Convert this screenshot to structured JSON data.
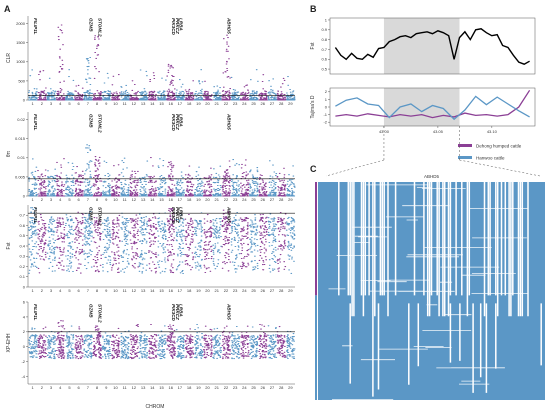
{
  "panel_labels": {
    "a": "A",
    "b": "B",
    "c": "C"
  },
  "colors": {
    "blue": "#5b97c6",
    "purple": "#8b3f95",
    "threshold": "#111111",
    "shade": "#d9d9d9",
    "line_black": "#000000"
  },
  "chart_data": [
    {
      "type": "scatter",
      "ylabel": "CLR",
      "yticks": [
        0,
        500,
        1000,
        1500,
        2000
      ],
      "ylim": [
        0,
        2200
      ],
      "baseline": 150,
      "threshold": 120,
      "genes": [
        {
          "label": "FILIP1L",
          "chrom": 1
        },
        {
          "label": "GZMB",
          "chrom": 7
        },
        {
          "label": "STOML2",
          "chrom": 8
        },
        {
          "label": "PIK3CD",
          "chrom": 16
        },
        {
          "label": "PRKCZ",
          "chrom": 16.4
        },
        {
          "label": "LRBA",
          "chrom": 16.8
        },
        {
          "label": "ABHD5",
          "chrom": 22
        }
      ],
      "peaks": [
        {
          "chrom": 4,
          "value": 2050
        },
        {
          "chrom": 7,
          "value": 1200
        },
        {
          "chrom": 8,
          "value": 1700
        },
        {
          "chrom": 16,
          "value": 1000
        },
        {
          "chrom": 22,
          "value": 1800
        }
      ]
    },
    {
      "type": "scatter",
      "ylabel": "θπ",
      "yticks": [
        0,
        0.005,
        0.01,
        0.015,
        0.02
      ],
      "ylim": [
        0,
        0.022
      ],
      "baseline": 0.0035,
      "threshold": 0.0045,
      "genes": [
        {
          "label": "FILIP1L",
          "chrom": 1
        },
        {
          "label": "GZMB",
          "chrom": 7
        },
        {
          "label": "STOML2",
          "chrom": 8
        },
        {
          "label": "PIK3CD",
          "chrom": 16
        },
        {
          "label": "PRKCZ",
          "chrom": 16.4
        },
        {
          "label": "LRBA",
          "chrom": 16.8
        },
        {
          "label": "ABHD5",
          "chrom": 22
        }
      ],
      "peaks": [
        {
          "chrom": 7,
          "value": 0.0135
        },
        {
          "chrom": 8,
          "value": 0.011
        },
        {
          "chrom": 16,
          "value": 0.009
        },
        {
          "chrom": 22,
          "value": 0.007
        }
      ]
    },
    {
      "type": "scatter",
      "ylabel": "Fst",
      "yticks": [
        0,
        0.1,
        0.2,
        0.3,
        0.4,
        0.5,
        0.6,
        0.7
      ],
      "ylim": [
        0,
        0.8
      ],
      "baseline": 0.48,
      "threshold": 0.72,
      "genes": [
        {
          "label": "FILIP1L",
          "chrom": 1
        },
        {
          "label": "GZMB",
          "chrom": 7
        },
        {
          "label": "STOML2",
          "chrom": 8
        },
        {
          "label": "PIK3CD",
          "chrom": 16
        },
        {
          "label": "PRKCZ",
          "chrom": 16.4
        },
        {
          "label": "LRBA",
          "chrom": 16.8
        },
        {
          "label": "ABHD5",
          "chrom": 22
        }
      ],
      "peaks": [
        {
          "chrom": 1,
          "value": 0.78
        },
        {
          "chrom": 7,
          "value": 0.74
        },
        {
          "chrom": 16,
          "value": 0.78
        },
        {
          "chrom": 22,
          "value": 0.76
        }
      ]
    },
    {
      "type": "scatter",
      "ylabel": "XP-EHH",
      "yticks": [
        -4,
        -2,
        0,
        2,
        4,
        6
      ],
      "ylim": [
        -5,
        6
      ],
      "baseline": 0,
      "threshold": 2.0,
      "genes": [
        {
          "label": "FILIP1L",
          "chrom": 1
        },
        {
          "label": "GZMB",
          "chrom": 7
        },
        {
          "label": "STOML2",
          "chrom": 8
        },
        {
          "label": "PIK3CD",
          "chrom": 16
        },
        {
          "label": "PRKCZ",
          "chrom": 16.4
        },
        {
          "label": "LRBA",
          "chrom": 16.8
        },
        {
          "label": "ABHD5",
          "chrom": 22
        }
      ],
      "peaks": [
        {
          "chrom": 4,
          "value": 3.5
        },
        {
          "chrom": 8,
          "value": 3.0
        },
        {
          "chrom": 16,
          "value": 3.2
        }
      ]
    },
    {
      "type": "line",
      "ylabel": "Fst",
      "yticks": [
        0.5,
        0.6,
        0.7,
        0.8,
        0.9,
        1.0
      ],
      "ylim": [
        0.45,
        1.02
      ],
      "xlim": [
        42.95,
        43.14
      ],
      "shade": [
        43.0,
        43.07
      ],
      "x": [
        42.955,
        42.96,
        42.965,
        42.97,
        42.975,
        42.98,
        42.985,
        42.99,
        42.995,
        43.0,
        43.005,
        43.01,
        43.015,
        43.02,
        43.025,
        43.03,
        43.035,
        43.04,
        43.045,
        43.05,
        43.055,
        43.06,
        43.065,
        43.07,
        43.075,
        43.08,
        43.085,
        43.09,
        43.095,
        43.1,
        43.105,
        43.11,
        43.115,
        43.12,
        43.125,
        43.13,
        43.135
      ],
      "y": [
        0.72,
        0.64,
        0.6,
        0.66,
        0.61,
        0.6,
        0.65,
        0.62,
        0.71,
        0.72,
        0.78,
        0.8,
        0.83,
        0.84,
        0.82,
        0.86,
        0.87,
        0.88,
        0.86,
        0.89,
        0.87,
        0.84,
        0.6,
        0.82,
        0.88,
        0.8,
        0.9,
        0.91,
        0.87,
        0.84,
        0.85,
        0.74,
        0.72,
        0.64,
        0.57,
        0.55,
        0.58
      ]
    },
    {
      "type": "line",
      "ylabel": "Tajima's D",
      "yticks": [
        -2,
        -1,
        0,
        1,
        2
      ],
      "ylim": [
        -2.5,
        2.5
      ],
      "xlim": [
        42.95,
        43.14
      ],
      "shade": [
        43.0,
        43.07
      ],
      "xticks": [
        43.0,
        43.05,
        43.1
      ],
      "series": [
        {
          "name": "Dehong humped cattle",
          "x": [
            42.955,
            42.965,
            42.975,
            42.985,
            42.995,
            43.005,
            43.015,
            43.025,
            43.035,
            43.045,
            43.055,
            43.065,
            43.075,
            43.085,
            43.095,
            43.105,
            43.115,
            43.125,
            43.135
          ],
          "y": [
            -1.2,
            -1.0,
            -1.2,
            -0.9,
            -1.1,
            -1.3,
            -1.0,
            -1.2,
            -1.0,
            -1.4,
            -1.1,
            -1.3,
            -0.8,
            -1.1,
            -1.0,
            -1.2,
            -1.0,
            0.0,
            2.2
          ]
        },
        {
          "name": "Hanwoo cattle",
          "x": [
            42.955,
            42.965,
            42.975,
            42.985,
            42.995,
            43.005,
            43.015,
            43.025,
            43.035,
            43.045,
            43.055,
            43.065,
            43.075,
            43.085,
            43.095,
            43.105,
            43.115,
            43.125,
            43.135
          ],
          "y": [
            0.1,
            0.9,
            1.2,
            0.4,
            0.2,
            -1.4,
            0.0,
            0.4,
            -0.6,
            0.2,
            -0.2,
            -1.6,
            -0.4,
            1.4,
            0.3,
            1.3,
            0.4,
            -0.5,
            -1.3
          ]
        }
      ]
    },
    {
      "type": "heatmap",
      "title": "ABHD5",
      "colors": [
        "#5b97c6",
        "#ffffff"
      ],
      "row_groups": [
        {
          "name": "Dehong humped cattle",
          "color": "#8b3f95"
        },
        {
          "name": "Hanwoo cattle",
          "color": "#5b97c6"
        }
      ]
    }
  ],
  "chromosomes": [
    "1",
    "2",
    "3",
    "4",
    "5",
    "6",
    "7",
    "8",
    "9",
    "10",
    "11",
    "12",
    "13",
    "14",
    "15",
    "16",
    "17",
    "18",
    "19",
    "20",
    "21",
    "22",
    "23",
    "24",
    "25",
    "26",
    "27",
    "28",
    "29"
  ],
  "xaxis_label": "CHROM",
  "legend": {
    "items": [
      {
        "label": "Dehong humped cattle",
        "color": "#8b3f95"
      },
      {
        "label": "Hanwoo cattle",
        "color": "#5b97c6"
      }
    ]
  },
  "b_xtick_labels": [
    "43.00",
    "43.05",
    "43.10"
  ]
}
